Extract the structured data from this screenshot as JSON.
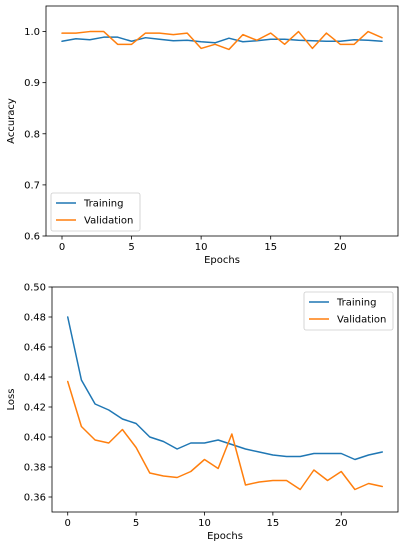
{
  "chart_data": [
    {
      "type": "line",
      "title": "",
      "xlabel": "Epochs",
      "ylabel": "Accuracy",
      "xlim": [
        -1.15,
        24.15
      ],
      "ylim": [
        0.6,
        1.05
      ],
      "xticks": [
        0,
        5,
        10,
        15,
        20
      ],
      "yticks": [
        0.6,
        0.7,
        0.8,
        0.9,
        1.0
      ],
      "ytick_labels": [
        "0.6",
        "0.7",
        "0.8",
        "0.9",
        "1.0"
      ],
      "legend_position": "lower-left",
      "grid": false,
      "x": [
        0,
        1,
        2,
        3,
        4,
        5,
        6,
        7,
        8,
        9,
        10,
        11,
        12,
        13,
        14,
        15,
        16,
        17,
        18,
        19,
        20,
        21,
        22,
        23
      ],
      "series": [
        {
          "name": "Training",
          "color": "#1f77b4",
          "values": [
            0.981,
            0.986,
            0.984,
            0.989,
            0.989,
            0.981,
            0.988,
            0.985,
            0.982,
            0.983,
            0.98,
            0.978,
            0.987,
            0.98,
            0.982,
            0.985,
            0.985,
            0.983,
            0.982,
            0.981,
            0.981,
            0.984,
            0.983,
            0.981
          ]
        },
        {
          "name": "Validation",
          "color": "#ff7f0e",
          "values": [
            0.997,
            0.997,
            1.0,
            1.0,
            0.975,
            0.975,
            0.997,
            0.997,
            0.994,
            0.997,
            0.967,
            0.975,
            0.965,
            0.994,
            0.983,
            0.997,
            0.975,
            1.0,
            0.967,
            0.997,
            0.975,
            0.975,
            1.0,
            0.988
          ]
        }
      ]
    },
    {
      "type": "line",
      "title": "",
      "xlabel": "Epochs",
      "ylabel": "Loss",
      "xlim": [
        -1.15,
        24.15
      ],
      "ylim": [
        0.35,
        0.5
      ],
      "xticks": [
        0,
        5,
        10,
        15,
        20
      ],
      "yticks": [
        0.36,
        0.38,
        0.4,
        0.42,
        0.44,
        0.46,
        0.48,
        0.5
      ],
      "ytick_labels": [
        "0.36",
        "0.38",
        "0.40",
        "0.42",
        "0.44",
        "0.46",
        "0.48",
        "0.50"
      ],
      "legend_position": "upper-right",
      "grid": false,
      "x": [
        0,
        1,
        2,
        3,
        4,
        5,
        6,
        7,
        8,
        9,
        10,
        11,
        12,
        13,
        14,
        15,
        16,
        17,
        18,
        19,
        20,
        21,
        22,
        23
      ],
      "series": [
        {
          "name": "Training",
          "color": "#1f77b4",
          "values": [
            0.48,
            0.438,
            0.422,
            0.418,
            0.412,
            0.409,
            0.4,
            0.397,
            0.392,
            0.396,
            0.396,
            0.398,
            0.395,
            0.392,
            0.39,
            0.388,
            0.387,
            0.387,
            0.389,
            0.389,
            0.389,
            0.385,
            0.388,
            0.39
          ]
        },
        {
          "name": "Validation",
          "color": "#ff7f0e",
          "values": [
            0.437,
            0.407,
            0.398,
            0.396,
            0.405,
            0.393,
            0.376,
            0.374,
            0.373,
            0.377,
            0.385,
            0.379,
            0.402,
            0.368,
            0.37,
            0.371,
            0.371,
            0.365,
            0.378,
            0.371,
            0.377,
            0.365,
            0.369,
            0.367
          ]
        }
      ]
    }
  ]
}
